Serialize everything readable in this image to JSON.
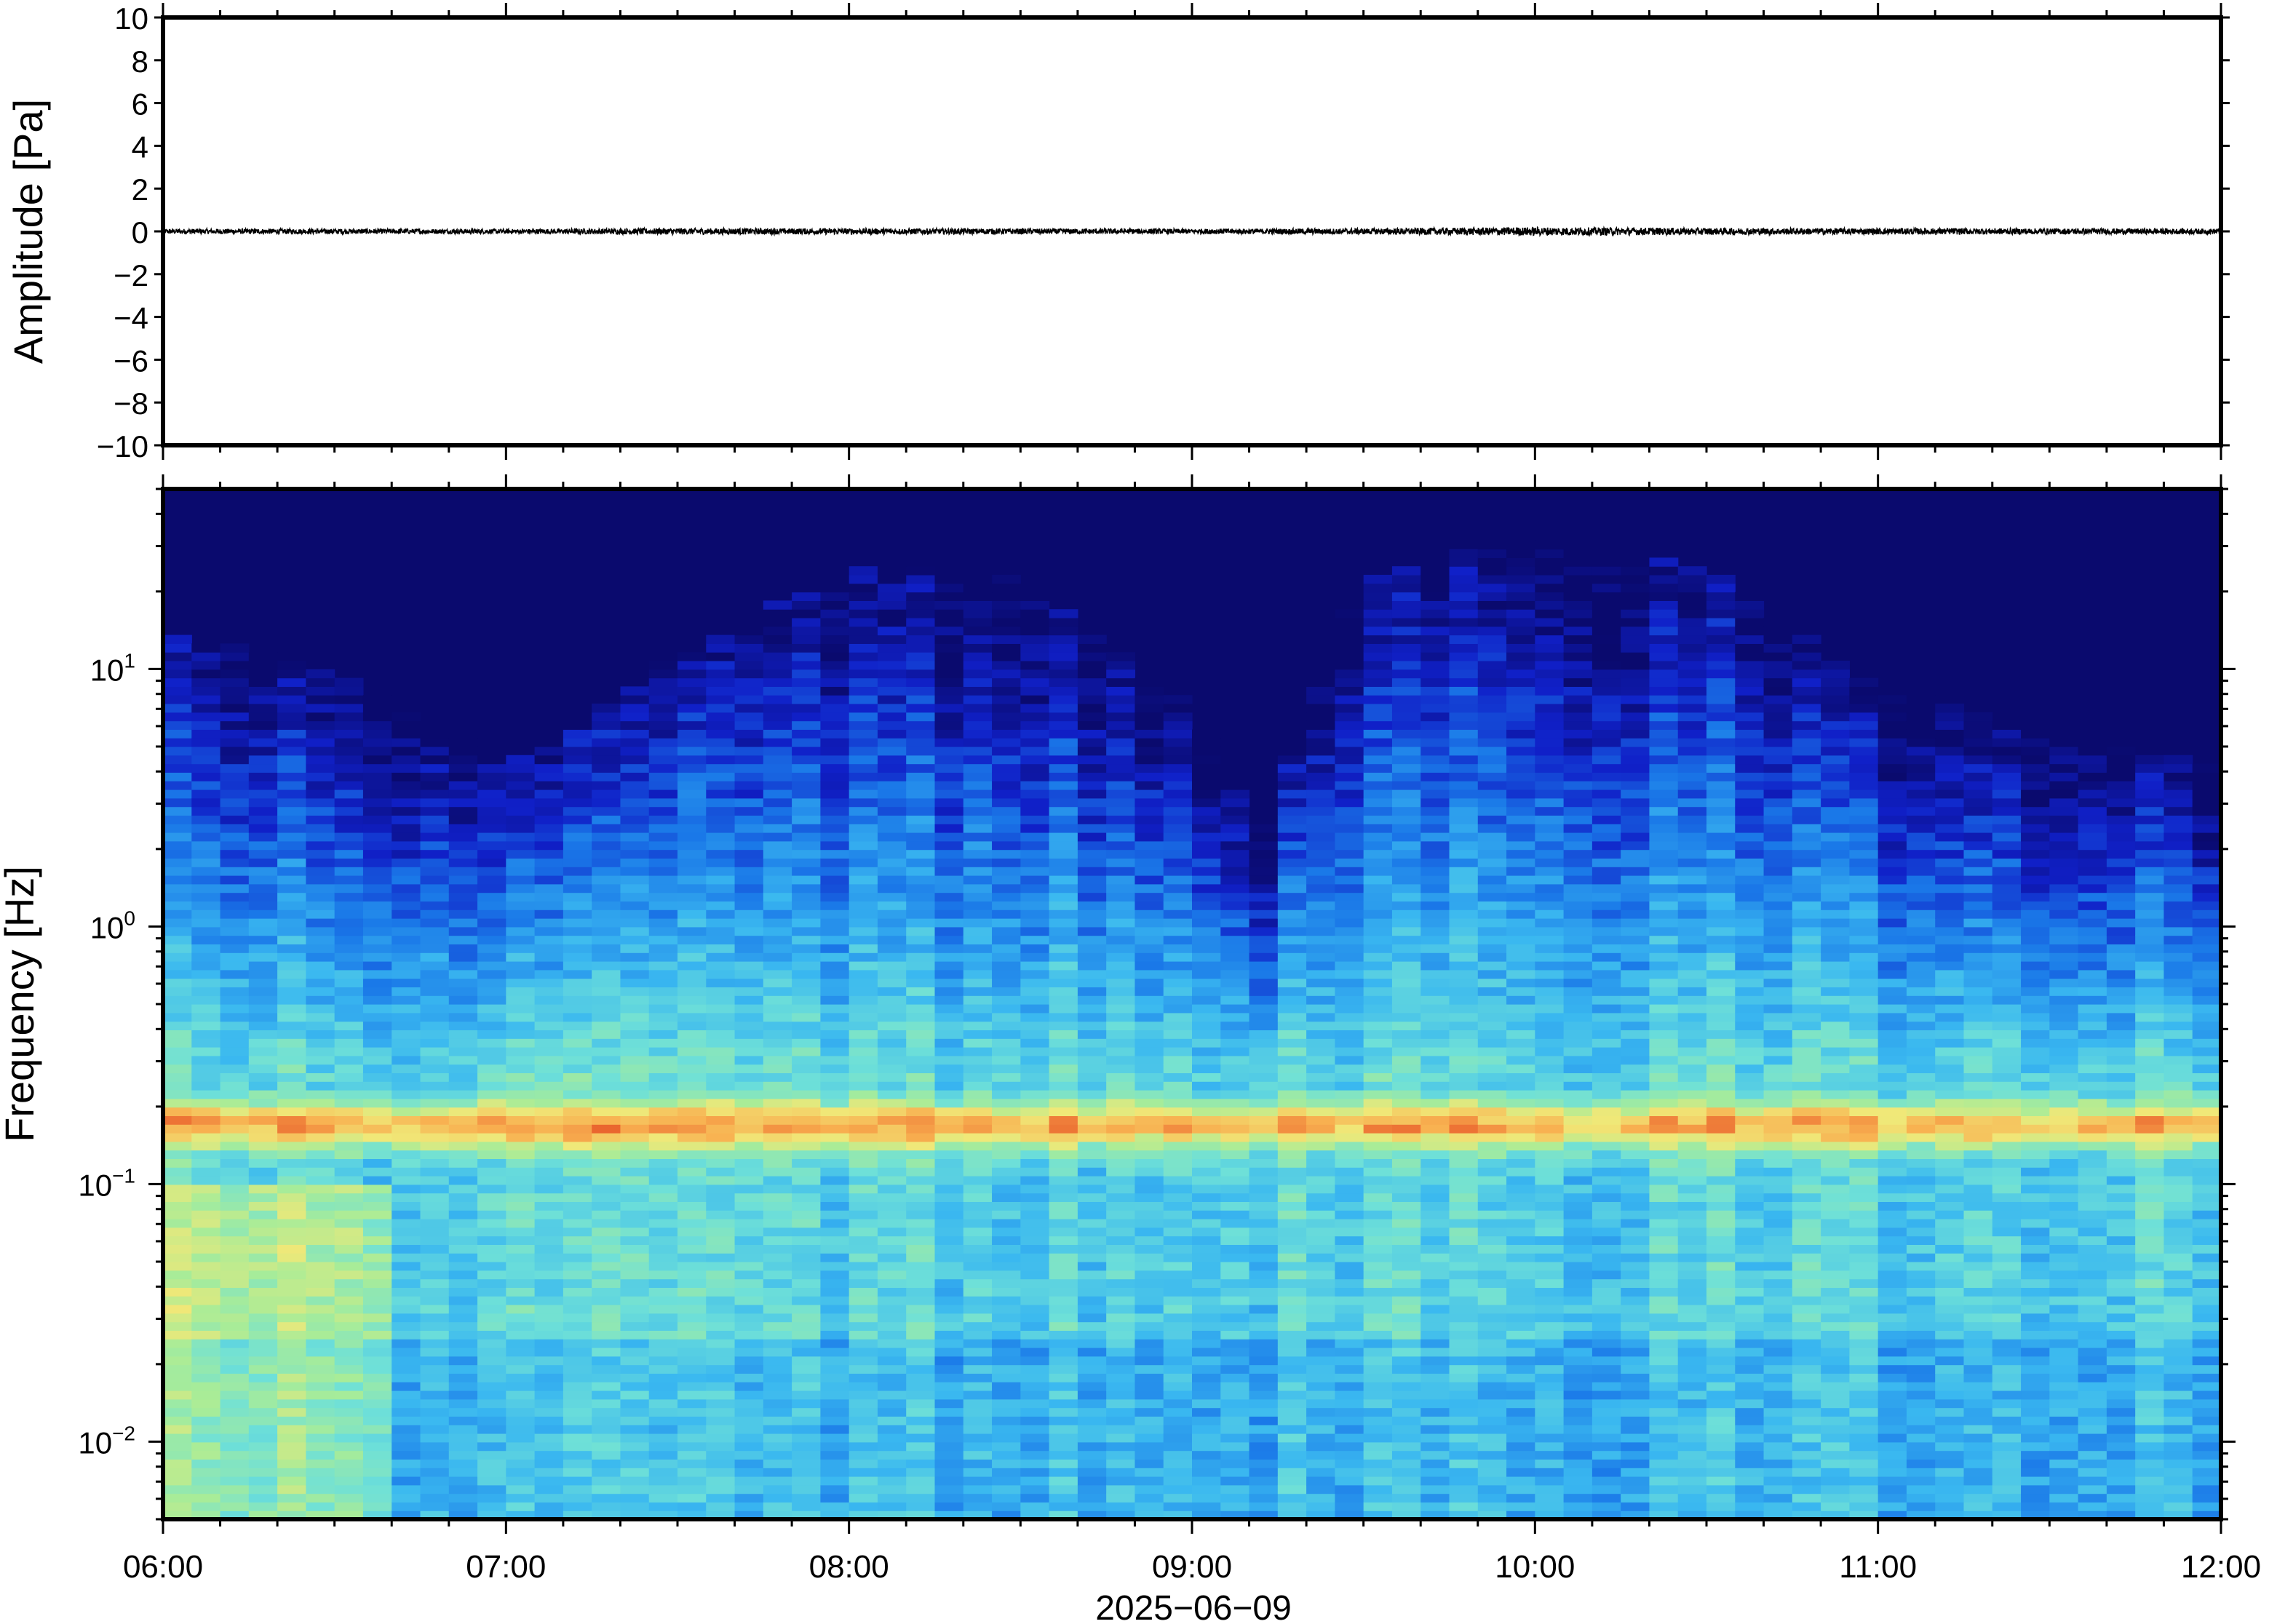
{
  "chart_data": [
    {
      "type": "line",
      "title": "",
      "xlabel": "",
      "ylabel": "Amplitude [Pa]",
      "ylim": [
        -10,
        10
      ],
      "yticks": [
        {
          "value": 10,
          "label": "10"
        },
        {
          "value": 8,
          "label": "8"
        },
        {
          "value": 6,
          "label": "6"
        },
        {
          "value": 4,
          "label": "4"
        },
        {
          "value": 2,
          "label": "2"
        },
        {
          "value": 0,
          "label": "0"
        },
        {
          "value": -2,
          "label": "−2"
        },
        {
          "value": -4,
          "label": "−4"
        },
        {
          "value": -6,
          "label": "−6"
        },
        {
          "value": -8,
          "label": "−8"
        },
        {
          "value": -10,
          "label": "−10"
        }
      ],
      "xlim": [
        "06:00",
        "12:00"
      ],
      "series_color": "#000000",
      "series": [
        {
          "x_hours": [
            6.0,
            6.5,
            7.0,
            7.5,
            8.0,
            8.5,
            9.0,
            9.5,
            10.0,
            10.5,
            11.0,
            11.5,
            12.0
          ],
          "envelope_pa": [
            0.12,
            0.12,
            0.11,
            0.15,
            0.14,
            0.13,
            0.12,
            0.14,
            0.2,
            0.16,
            0.15,
            0.14,
            0.13
          ]
        }
      ]
    },
    {
      "type": "heatmap",
      "title": "",
      "xlabel": "2025−06−09",
      "ylabel": "Frequency [Hz]",
      "y_scale": "log",
      "ylim": [
        0.005,
        50
      ],
      "ytick_labels": [
        {
          "value": 10,
          "base": "10",
          "exp": "1"
        },
        {
          "value": 1,
          "base": "10",
          "exp": "0"
        },
        {
          "value": 0.1,
          "base": "10",
          "exp": "−1"
        },
        {
          "value": 0.01,
          "base": "10",
          "exp": "−2"
        }
      ],
      "xtick_labels": [
        "06:00",
        "07:00",
        "08:00",
        "09:00",
        "10:00",
        "11:00",
        "12:00"
      ],
      "xlim": [
        "06:00",
        "12:00"
      ],
      "colormap": [
        "#0a0a6e",
        "#1020c8",
        "#1a78e8",
        "#3ab8f0",
        "#6ee0d8",
        "#a8ec98",
        "#f0e878",
        "#f8b050",
        "#e85a2a"
      ],
      "background_color": "#0a0a6e",
      "microseism_band_hz": 0.17,
      "columns": 72,
      "upper_cutoff_hz_by_hour": [
        [
          6.0,
          5.0
        ],
        [
          6.5,
          3.5
        ],
        [
          7.0,
          1.5
        ],
        [
          7.5,
          4.0
        ],
        [
          8.0,
          9.0
        ],
        [
          8.5,
          8.0
        ],
        [
          9.0,
          2.5
        ],
        [
          9.2,
          0.9
        ],
        [
          9.5,
          8.0
        ],
        [
          10.0,
          12.0
        ],
        [
          10.5,
          9.0
        ],
        [
          11.0,
          3.0
        ],
        [
          11.5,
          2.0
        ],
        [
          12.0,
          1.5
        ]
      ]
    }
  ]
}
